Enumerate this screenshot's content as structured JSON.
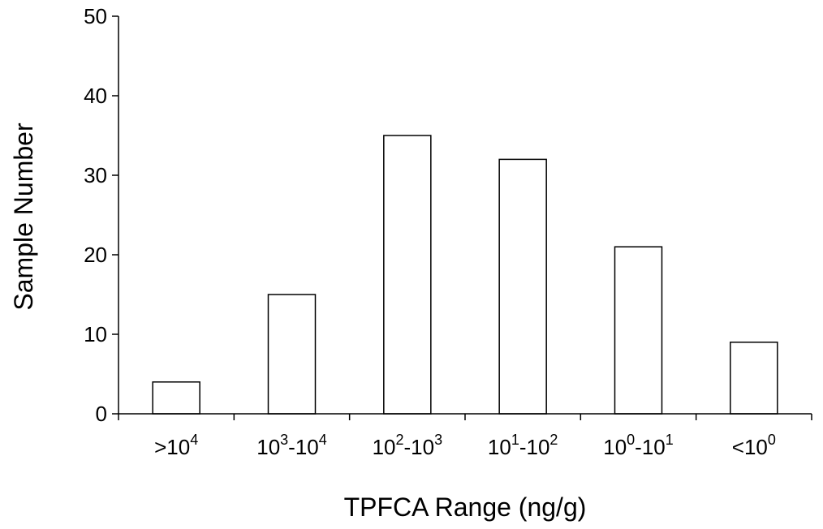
{
  "chart_data": {
    "type": "bar",
    "title": "",
    "xlabel": "TPFCA Range (ng/g)",
    "ylabel": "Sample Number",
    "ylim": [
      0,
      50
    ],
    "yticks": [
      0,
      10,
      20,
      30,
      40,
      50
    ],
    "grid": false,
    "legend": "none",
    "bar_fill": "#ffffff",
    "bar_stroke": "#000000",
    "categories": [
      {
        "base": "10",
        "exp": "4",
        "prefix": ">"
      },
      {
        "base": "10",
        "exp": "3",
        "sep": "-",
        "base2": "10",
        "exp2": "4"
      },
      {
        "base": "10",
        "exp": "2",
        "sep": "-",
        "base2": "10",
        "exp2": "3"
      },
      {
        "base": "10",
        "exp": "1",
        "sep": "-",
        "base2": "10",
        "exp2": "2"
      },
      {
        "base": "10",
        "exp": "0",
        "sep": "-",
        "base2": "10",
        "exp2": "1"
      },
      {
        "base": "10",
        "exp": "0",
        "prefix": "<"
      }
    ],
    "category_text": [
      ">10^4",
      "10^3-10^4",
      "10^2-10^3",
      "10^1-10^2",
      "10^0-10^1",
      "<10^0"
    ],
    "values": [
      4,
      15,
      35,
      32,
      21,
      9
    ]
  }
}
